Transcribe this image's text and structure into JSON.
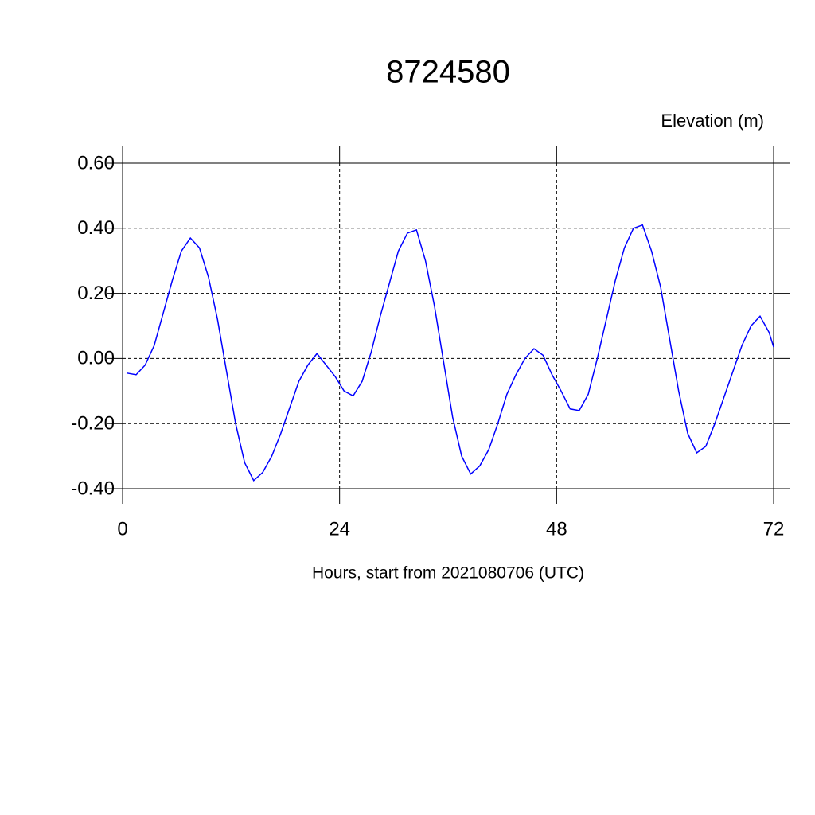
{
  "chart_data": {
    "type": "line",
    "title": "8724580",
    "y_label": "Elevation (m)",
    "x_label": "Hours, start from 2021080706 (UTC)",
    "x": [
      0.5,
      1.5,
      2.5,
      3.5,
      4.5,
      5.5,
      6.5,
      7.5,
      8.5,
      9.5,
      10.5,
      11.5,
      12.5,
      13.5,
      14.5,
      15.5,
      16.5,
      17.5,
      18.5,
      19.5,
      20.5,
      21.5,
      22.5,
      23.5,
      24.5,
      25.5,
      26.5,
      27.5,
      28.5,
      29.5,
      30.5,
      31.5,
      32.5,
      33.5,
      34.5,
      35.5,
      36.5,
      37.5,
      38.5,
      39.5,
      40.5,
      41.5,
      42.5,
      43.5,
      44.5,
      45.5,
      46.5,
      47.5,
      48.5,
      49.5,
      50.5,
      51.5,
      52.5,
      53.5,
      54.5,
      55.5,
      56.5,
      57.5,
      58.5,
      59.5,
      60.5,
      61.5,
      62.5,
      63.5,
      64.5,
      65.5,
      66.5,
      67.5,
      68.5,
      69.5,
      70.5,
      71.5,
      72
    ],
    "series": [
      {
        "name": "Elevation",
        "color": "#0000ff",
        "values": [
          -0.045,
          -0.05,
          -0.02,
          0.04,
          0.14,
          0.24,
          0.33,
          0.37,
          0.34,
          0.25,
          0.12,
          -0.04,
          -0.2,
          -0.32,
          -0.375,
          -0.35,
          -0.3,
          -0.23,
          -0.15,
          -0.07,
          -0.02,
          0.015,
          -0.02,
          -0.055,
          -0.1,
          -0.115,
          -0.07,
          0.02,
          0.13,
          0.23,
          0.33,
          0.385,
          0.395,
          0.3,
          0.16,
          -0.01,
          -0.18,
          -0.3,
          -0.355,
          -0.33,
          -0.28,
          -0.2,
          -0.11,
          -0.05,
          0.0,
          0.03,
          0.01,
          -0.05,
          -0.1,
          -0.155,
          -0.16,
          -0.11,
          0.0,
          0.12,
          0.24,
          0.34,
          0.4,
          0.41,
          0.33,
          0.22,
          0.06,
          -0.1,
          -0.23,
          -0.29,
          -0.27,
          -0.2,
          -0.12,
          -0.04,
          0.04,
          0.1,
          0.13,
          0.08,
          0.035
        ]
      }
    ],
    "xlim": [
      0,
      72
    ],
    "xticks": [
      0,
      24,
      48,
      72
    ],
    "ylim": [
      -0.4,
      0.6
    ],
    "yticks": [
      {
        "value": -0.4,
        "label": "-0.40"
      },
      {
        "value": -0.2,
        "label": "-0.20"
      },
      {
        "value": 0,
        "label": "0.00"
      },
      {
        "value": 0.2,
        "label": "0.20"
      },
      {
        "value": 0.4,
        "label": "0.40"
      },
      {
        "value": 0.6,
        "label": "0.60"
      }
    ],
    "grid": true
  }
}
